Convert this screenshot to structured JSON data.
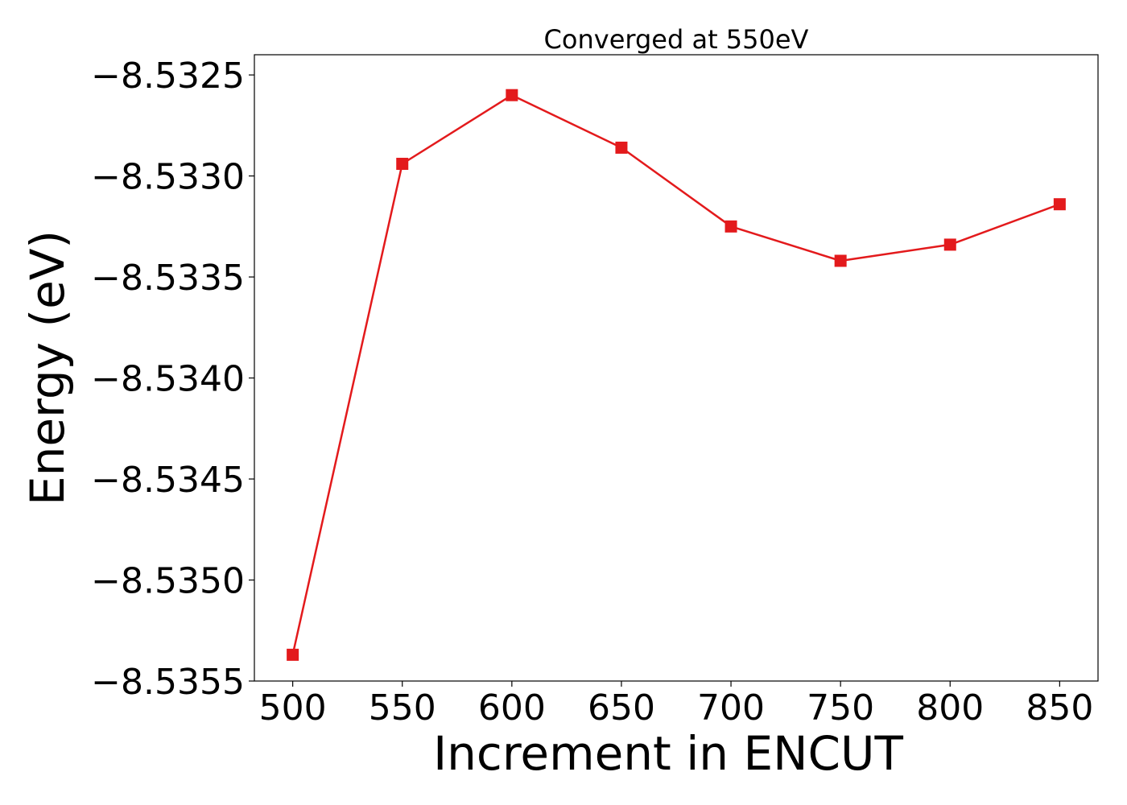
{
  "chart_data": {
    "type": "line",
    "title": "Converged at 550eV",
    "xlabel": "Increment in ENCUT",
    "ylabel": "Energy (eV)",
    "x": [
      500,
      550,
      600,
      650,
      700,
      750,
      800,
      850
    ],
    "series": [
      {
        "values": [
          -8.53537,
          -8.53294,
          -8.5326,
          -8.53286,
          -8.53325,
          -8.53342,
          -8.53334,
          -8.53314
        ],
        "color": "#e31a1c",
        "marker": "square"
      }
    ],
    "xlim": [
      482.5,
      867.5
    ],
    "ylim": [
      -8.5355,
      -8.5324
    ],
    "xticks": [
      500,
      550,
      600,
      650,
      700,
      750,
      800,
      850
    ],
    "xtick_labels": [
      "500",
      "550",
      "600",
      "650",
      "700",
      "750",
      "800",
      "850"
    ],
    "yticks": [
      -8.5355,
      -8.535,
      -8.5345,
      -8.534,
      -8.5335,
      -8.533,
      -8.5325
    ],
    "ytick_labels": [
      "−8.5355",
      "−8.5350",
      "−8.5345",
      "−8.5340",
      "−8.5335",
      "−8.5330",
      "−8.5325"
    ],
    "grid": false,
    "legend": false
  }
}
